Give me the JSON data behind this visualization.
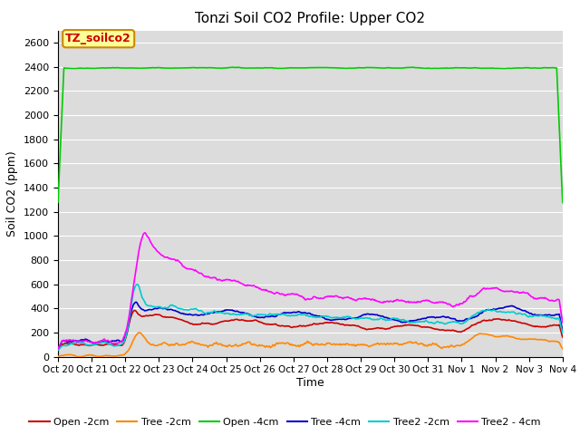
{
  "title": "Tonzi Soil CO2 Profile: Upper CO2",
  "ylabel": "Soil CO2 (ppm)",
  "xlabel": "Time",
  "ylim": [
    0,
    2700
  ],
  "yticks": [
    0,
    200,
    400,
    600,
    800,
    1000,
    1200,
    1400,
    1600,
    1800,
    2000,
    2200,
    2400,
    2600
  ],
  "bg_color": "#dcdcdc",
  "grid_color": "#ffffff",
  "annotation_text": "TZ_soilco2",
  "annotation_bg": "#ffff99",
  "annotation_border": "#cc8800",
  "annotation_text_color": "#cc0000",
  "series": {
    "Open -2cm": {
      "color": "#cc0000",
      "lw": 1.2
    },
    "Tree -2cm": {
      "color": "#ff8800",
      "lw": 1.2
    },
    "Open -4cm": {
      "color": "#00cc00",
      "lw": 1.2
    },
    "Tree -4cm": {
      "color": "#0000cc",
      "lw": 1.2
    },
    "Tree2 -2cm": {
      "color": "#00cccc",
      "lw": 1.2
    },
    "Tree2 - 4cm": {
      "color": "#ff00ff",
      "lw": 1.2
    }
  },
  "x_tick_labels": [
    "Oct 20",
    "Oct 21",
    "Oct 22",
    "Oct 23",
    "Oct 24",
    "Oct 25",
    "Oct 26",
    "Oct 27",
    "Oct 28",
    "Oct 29",
    "Oct 30",
    "Oct 31",
    "Nov 1",
    "Nov 2",
    "Nov 3",
    "Nov 4"
  ],
  "n_points": 600,
  "seed": 42
}
